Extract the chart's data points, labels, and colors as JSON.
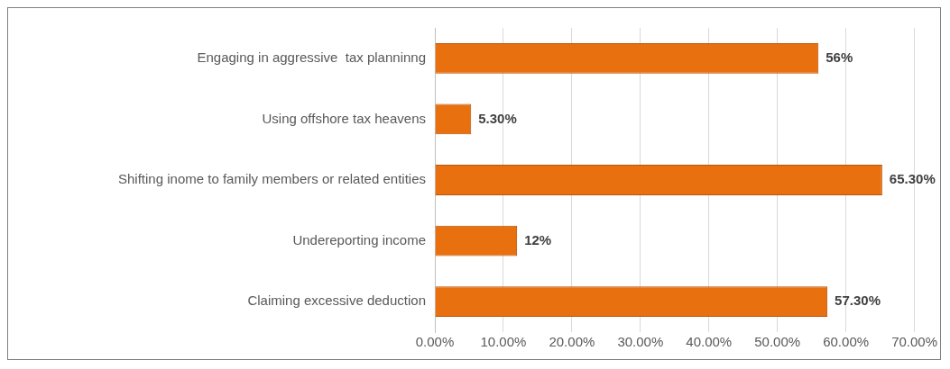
{
  "chart_data": {
    "type": "bar",
    "orientation": "horizontal",
    "categories": [
      "Engaging in aggressive  tax planninng",
      "Using offshore tax heavens",
      "Shifting inome to family members or related entities",
      "Undereporting income",
      "Claiming excessive deduction"
    ],
    "values": [
      56,
      5.3,
      65.3,
      12,
      57.3
    ],
    "value_labels": [
      "56%",
      "5.30%",
      "65.30%",
      "12%",
      "57.30%"
    ],
    "color": "#e8700f",
    "xlim": [
      0,
      70
    ],
    "xticks": [
      {
        "value": 0,
        "label": "0.00%"
      },
      {
        "value": 10,
        "label": "10.00%"
      },
      {
        "value": 20,
        "label": "20.00%"
      },
      {
        "value": 30,
        "label": "30.00%"
      },
      {
        "value": 40,
        "label": "40.00%"
      },
      {
        "value": 50,
        "label": "50.00%"
      },
      {
        "value": 60,
        "label": "60.00%"
      },
      {
        "value": 70,
        "label": "70.00%"
      }
    ],
    "grid": "x",
    "legend": false
  }
}
